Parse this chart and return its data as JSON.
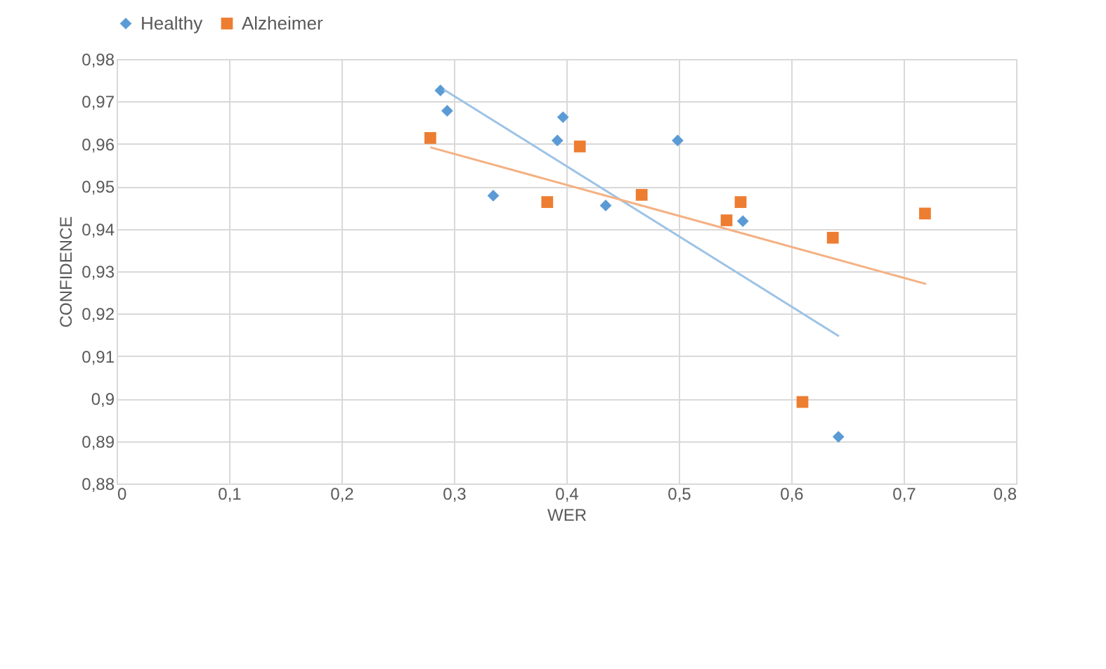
{
  "chart_data": {
    "type": "scatter",
    "xlabel": "WER",
    "ylabel": "CONFIDENCE",
    "legend": "top",
    "grid": true,
    "xlim": [
      0,
      0.8
    ],
    "xticks": [
      0,
      {
        "value": 0.1,
        "label": "0,1"
      },
      {
        "value": 0.2,
        "label": "0,2"
      },
      {
        "value": 0.3,
        "label": "0,3"
      },
      {
        "value": 0.4,
        "label": "0,4"
      },
      {
        "value": 0.5,
        "label": "0,5"
      },
      {
        "value": 0.6,
        "label": "0,6"
      },
      {
        "value": 0.7,
        "label": "0,7"
      },
      {
        "value": 0.8,
        "label": "0,8"
      }
    ],
    "ylim": [
      0.88,
      0.98
    ],
    "yticks": [
      {
        "value": 0.88,
        "label": "0,88"
      },
      {
        "value": 0.89,
        "label": "0,89"
      },
      {
        "value": 0.9,
        "label": "0,9"
      },
      {
        "value": 0.91,
        "label": "0,91"
      },
      {
        "value": 0.92,
        "label": "0,92"
      },
      {
        "value": 0.93,
        "label": "0,93"
      },
      {
        "value": 0.94,
        "label": "0,94"
      },
      {
        "value": 0.95,
        "label": "0,95"
      },
      {
        "value": 0.96,
        "label": "0,96"
      },
      {
        "value": 0.97,
        "label": "0,97"
      },
      {
        "value": 0.98,
        "label": "0,98"
      }
    ],
    "series": [
      {
        "name": "Healthy",
        "type": "scatter",
        "marker": "diamond",
        "color": "#5b9bd5",
        "x": [
          0.288,
          0.294,
          0.397,
          0.392,
          0.499,
          0.335,
          0.435,
          0.557,
          0.642
        ],
        "values": [
          0.9726,
          0.9678,
          0.9663,
          0.9608,
          0.9608,
          0.9478,
          0.9455,
          0.9418,
          0.891
        ]
      },
      {
        "name": "Alzheimer",
        "type": "scatter",
        "marker": "square",
        "color": "#ed7d31",
        "x": [
          0.279,
          0.412,
          0.383,
          0.467,
          0.5425,
          0.555,
          0.637,
          0.719,
          0.61
        ],
        "values": [
          0.9614,
          0.9594,
          0.9463,
          0.948,
          0.942,
          0.9463,
          0.9379,
          0.9436,
          0.8992
        ]
      },
      {
        "type": "line",
        "color": "#9dc3e6",
        "x": [
          0.291,
          0.6425
        ],
        "values": [
          0.9728,
          0.9147
        ]
      },
      {
        "type": "line",
        "color": "#f4b183",
        "x": [
          0.279,
          0.72
        ],
        "values": [
          0.9592,
          0.927
        ]
      }
    ]
  }
}
